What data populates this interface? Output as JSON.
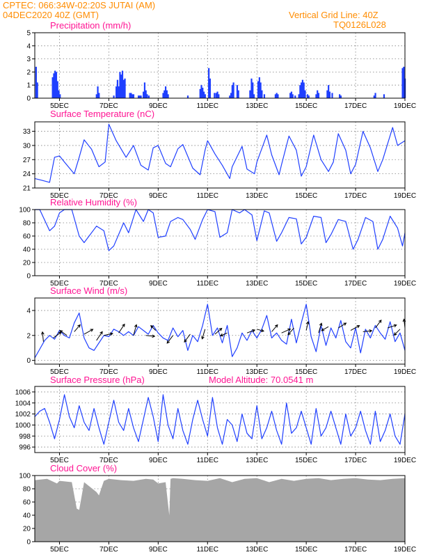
{
  "header": {
    "station": "CPTEC:   066:34W-02:20S   JUTAI (AM)",
    "date": "04DEC2020  40Z (GMT)",
    "grid_note": "Vertical Grid Line: 40Z",
    "run_id": "TQ0126L028"
  },
  "colors": {
    "header": "#ff8c00",
    "title": "#ff1493",
    "line": "#1f3fff",
    "bar": "#1f3fff",
    "cloud": "#a6a6a6",
    "grid": "#808080"
  },
  "x_ticks": [
    "5DEC",
    "7DEC",
    "9DEC",
    "11DEC",
    "13DEC",
    "15DEC",
    "17DEC",
    "19DEC"
  ],
  "chart_data": [
    {
      "id": "precip",
      "type": "bar",
      "title": "Precipitation (mm/h)",
      "ylim": [
        0,
        5
      ],
      "yticks": [
        "0",
        "1",
        "2",
        "3",
        "4",
        "5"
      ],
      "grid": true,
      "x_range_days": [
        4.0,
        19.0
      ],
      "bars": [
        [
          4.05,
          2.4
        ],
        [
          4.1,
          1.2
        ],
        [
          4.72,
          1.6
        ],
        [
          4.77,
          1.9
        ],
        [
          4.82,
          2.1
        ],
        [
          4.87,
          2.0
        ],
        [
          4.92,
          1.3
        ],
        [
          4.97,
          0.6
        ],
        [
          5.02,
          0.3
        ],
        [
          6.5,
          0.3
        ],
        [
          6.55,
          0.9
        ],
        [
          6.6,
          0.4
        ],
        [
          7.2,
          0.2
        ],
        [
          7.3,
          0.9
        ],
        [
          7.35,
          1.4
        ],
        [
          7.4,
          0.9
        ],
        [
          7.45,
          2.0
        ],
        [
          7.5,
          1.8
        ],
        [
          7.55,
          2.1
        ],
        [
          7.6,
          1.4
        ],
        [
          7.65,
          1.5
        ],
        [
          7.85,
          0.4
        ],
        [
          7.9,
          0.4
        ],
        [
          7.95,
          0.3
        ],
        [
          8.0,
          0.3
        ],
        [
          8.2,
          0.2
        ],
        [
          8.25,
          0.2
        ],
        [
          8.3,
          0.2
        ],
        [
          8.4,
          0.5
        ],
        [
          8.45,
          1.2
        ],
        [
          8.5,
          0.6
        ],
        [
          8.55,
          0.3
        ],
        [
          8.62,
          0.2
        ],
        [
          9.2,
          0.4
        ],
        [
          9.25,
          0.6
        ],
        [
          9.3,
          0.9
        ],
        [
          9.35,
          0.6
        ],
        [
          9.4,
          0.3
        ],
        [
          10.2,
          0.2
        ],
        [
          10.7,
          0.7
        ],
        [
          10.75,
          1.0
        ],
        [
          10.8,
          0.8
        ],
        [
          10.85,
          0.5
        ],
        [
          10.9,
          0.3
        ],
        [
          11.05,
          2.3
        ],
        [
          11.1,
          1.5
        ],
        [
          11.28,
          0.4
        ],
        [
          11.35,
          0.4
        ],
        [
          11.4,
          0.5
        ],
        [
          11.45,
          0.3
        ],
        [
          11.9,
          0.2
        ],
        [
          11.95,
          0.4
        ],
        [
          12.0,
          1.0
        ],
        [
          12.05,
          1.2
        ],
        [
          12.2,
          1.0
        ],
        [
          12.25,
          0.6
        ],
        [
          12.72,
          0.6
        ],
        [
          12.78,
          1.5
        ],
        [
          12.83,
          1.2
        ],
        [
          12.88,
          0.3
        ],
        [
          13.05,
          1.3
        ],
        [
          13.1,
          1.6
        ],
        [
          13.15,
          1.2
        ],
        [
          13.2,
          0.6
        ],
        [
          13.3,
          0.3
        ],
        [
          13.75,
          0.3
        ],
        [
          13.8,
          0.4
        ],
        [
          13.85,
          0.3
        ],
        [
          14.35,
          0.4
        ],
        [
          14.4,
          0.5
        ],
        [
          14.45,
          0.3
        ],
        [
          14.55,
          0.2
        ],
        [
          14.7,
          0.3
        ],
        [
          14.75,
          1.0
        ],
        [
          14.8,
          1.2
        ],
        [
          14.85,
          1.4
        ],
        [
          14.9,
          1.2
        ],
        [
          14.95,
          0.6
        ],
        [
          15.05,
          0.3
        ],
        [
          15.1,
          0.2
        ],
        [
          15.4,
          0.3
        ],
        [
          15.45,
          0.6
        ],
        [
          15.5,
          0.4
        ],
        [
          15.85,
          0.6
        ],
        [
          15.9,
          1.0
        ],
        [
          15.95,
          0.5
        ],
        [
          16.05,
          0.4
        ],
        [
          16.35,
          0.3
        ],
        [
          16.4,
          0.2
        ],
        [
          17.75,
          0.2
        ],
        [
          17.8,
          0.4
        ],
        [
          18.15,
          0.3
        ],
        [
          18.9,
          2.3
        ],
        [
          18.95,
          2.4
        ],
        [
          19.0,
          1.5
        ]
      ]
    },
    {
      "id": "temp",
      "type": "line",
      "title": "Surface Temperature (nC)",
      "ylim": [
        21,
        35
      ],
      "yticks": [
        "21",
        "24",
        "27",
        "30",
        "33"
      ],
      "ytick_values": [
        21,
        24,
        27,
        30,
        33
      ],
      "grid": true,
      "x": [
        4.0,
        4.3,
        4.6,
        4.8,
        5.0,
        5.2,
        5.6,
        5.8,
        6.0,
        6.3,
        6.6,
        6.85,
        7.0,
        7.3,
        7.7,
        8.0,
        8.3,
        8.6,
        8.8,
        9.0,
        9.3,
        9.5,
        9.8,
        10.0,
        10.4,
        10.7,
        10.9,
        11.0,
        11.3,
        11.6,
        11.9,
        12.0,
        12.4,
        12.6,
        12.9,
        13.0,
        13.4,
        13.6,
        13.9,
        14.0,
        14.3,
        14.6,
        14.8,
        15.0,
        15.3,
        15.6,
        15.9,
        16.1,
        16.3,
        16.6,
        16.8,
        17.0,
        17.3,
        17.6,
        17.9,
        18.1,
        18.5,
        18.7,
        19.0
      ],
      "y": [
        23.0,
        22.6,
        22.2,
        27.5,
        27.8,
        26.5,
        24.0,
        27.5,
        31.2,
        29.2,
        25.5,
        26.5,
        34.5,
        31.0,
        27.5,
        30.0,
        25.8,
        24.8,
        29.5,
        30.0,
        26.2,
        25.5,
        29.3,
        30.2,
        25.2,
        23.8,
        29.0,
        31.0,
        28.2,
        25.8,
        23.0,
        25.5,
        29.8,
        25.0,
        24.0,
        26.5,
        32.2,
        28.0,
        23.8,
        26.0,
        32.0,
        29.0,
        23.5,
        25.5,
        32.2,
        27.0,
        24.5,
        26.5,
        32.5,
        29.0,
        24.0,
        26.0,
        33.0,
        29.5,
        24.5,
        27.0,
        33.8,
        30.0,
        31.0
      ]
    },
    {
      "id": "rh",
      "type": "line",
      "title": "Relative Humidity (%)",
      "ylim": [
        0,
        100
      ],
      "yticks": [
        "0",
        "20",
        "40",
        "60",
        "80",
        "100"
      ],
      "ytick_values": [
        0,
        20,
        40,
        60,
        80,
        100
      ],
      "grid": true,
      "x": [
        4.0,
        4.2,
        4.6,
        4.8,
        5.0,
        5.2,
        5.5,
        5.8,
        6.0,
        6.5,
        6.8,
        7.0,
        7.2,
        7.6,
        7.8,
        8.1,
        8.4,
        8.6,
        8.8,
        9.0,
        9.3,
        9.5,
        9.8,
        10.0,
        10.3,
        10.5,
        10.8,
        11.0,
        11.3,
        11.5,
        11.8,
        12.0,
        12.3,
        12.5,
        12.8,
        13.0,
        13.3,
        13.5,
        13.8,
        14.0,
        14.3,
        14.6,
        14.8,
        15.0,
        15.3,
        15.6,
        15.8,
        16.0,
        16.3,
        16.6,
        16.9,
        17.1,
        17.4,
        17.7,
        17.9,
        18.1,
        18.4,
        18.7,
        18.9,
        19.0
      ],
      "y": [
        100,
        100,
        68,
        75,
        95,
        100,
        100,
        60,
        50,
        75,
        68,
        38,
        45,
        80,
        65,
        100,
        82,
        100,
        95,
        58,
        60,
        82,
        88,
        85,
        70,
        55,
        85,
        100,
        97,
        58,
        65,
        100,
        95,
        100,
        92,
        53,
        98,
        95,
        52,
        65,
        88,
        86,
        48,
        58,
        90,
        88,
        50,
        62,
        85,
        82,
        40,
        55,
        88,
        82,
        40,
        55,
        90,
        72,
        45,
        65
      ]
    },
    {
      "id": "wind",
      "type": "line",
      "title": "Surface Wind (m/s)",
      "ylim": [
        -0.3,
        5
      ],
      "yticks": [
        "0",
        "2",
        "4"
      ],
      "ytick_values": [
        0,
        2,
        4
      ],
      "grid": true,
      "x": [
        4.0,
        4.2,
        4.4,
        4.6,
        4.8,
        5.0,
        5.2,
        5.4,
        5.6,
        5.8,
        6.0,
        6.2,
        6.4,
        6.6,
        6.8,
        7.0,
        7.2,
        7.4,
        7.6,
        7.8,
        8.0,
        8.2,
        8.4,
        8.6,
        8.8,
        9.0,
        9.2,
        9.4,
        9.6,
        9.8,
        10.0,
        10.2,
        10.4,
        10.6,
        10.8,
        11.0,
        11.2,
        11.4,
        11.6,
        11.8,
        12.0,
        12.2,
        12.4,
        12.6,
        12.8,
        13.0,
        13.2,
        13.4,
        13.6,
        13.8,
        14.0,
        14.2,
        14.4,
        14.6,
        14.8,
        15.0,
        15.2,
        15.4,
        15.6,
        15.8,
        16.0,
        16.2,
        16.4,
        16.6,
        16.8,
        17.0,
        17.2,
        17.4,
        17.6,
        17.8,
        18.0,
        18.2,
        18.4,
        18.6,
        18.8,
        19.0
      ],
      "y": [
        0.2,
        0.9,
        1.6,
        2.0,
        1.7,
        2.4,
        2.0,
        1.8,
        3.0,
        3.8,
        1.8,
        1.0,
        0.8,
        1.4,
        2.0,
        1.9,
        2.5,
        2.3,
        2.0,
        2.3,
        2.0,
        2.7,
        2.4,
        2.1,
        2.8,
        2.2,
        1.8,
        1.6,
        2.6,
        1.9,
        2.4,
        0.8,
        2.0,
        1.5,
        2.8,
        4.5,
        2.0,
        2.6,
        1.4,
        2.8,
        0.3,
        1.0,
        2.2,
        1.6,
        2.4,
        1.8,
        2.5,
        3.6,
        1.8,
        2.2,
        1.6,
        1.3,
        3.3,
        1.4,
        3.0,
        4.5,
        1.9,
        0.7,
        2.8,
        1.2,
        2.6,
        1.8,
        3.2,
        1.5,
        1.0,
        2.6,
        0.6,
        2.5,
        1.8,
        2.8,
        2.2,
        1.7,
        3.1,
        1.5,
        2.2,
        0.8
      ],
      "arrows": [
        [
          4.35,
          1.5,
          -0.1,
          1.0
        ],
        [
          4.75,
          1.8,
          0.8,
          0.6
        ],
        [
          5.3,
          2.0,
          -0.7,
          0.5
        ],
        [
          5.6,
          2.3,
          0.6,
          0.7
        ],
        [
          6.0,
          2.1,
          0.9,
          0.5
        ],
        [
          6.5,
          1.6,
          0.6,
          0.9
        ],
        [
          6.8,
          2.0,
          0.9,
          0.2
        ],
        [
          7.4,
          2.2,
          0.6,
          0.9
        ],
        [
          8.0,
          2.0,
          0.3,
          1.1
        ],
        [
          8.5,
          2.0,
          0.9,
          -0.1
        ],
        [
          8.9,
          2.4,
          -0.5,
          0.5
        ],
        [
          9.6,
          2.0,
          -0.6,
          -0.8
        ],
        [
          10.3,
          2.1,
          -0.6,
          -0.8
        ],
        [
          10.9,
          2.5,
          -0.3,
          -1.0
        ],
        [
          11.3,
          2.1,
          0.7,
          0.6
        ],
        [
          11.8,
          2.2,
          -0.7,
          -0.3
        ],
        [
          12.6,
          2.2,
          0.8,
          0.3
        ],
        [
          13.0,
          2.5,
          0.7,
          -0.2
        ],
        [
          13.6,
          2.3,
          0.6,
          0.7
        ],
        [
          14.0,
          2.2,
          0.9,
          0.4
        ],
        [
          14.5,
          2.6,
          -0.6,
          -0.7
        ],
        [
          15.0,
          2.4,
          0.2,
          0.9
        ],
        [
          15.5,
          2.2,
          0.3,
          1.0
        ],
        [
          15.9,
          2.7,
          -0.7,
          -0.4
        ],
        [
          16.3,
          2.6,
          0.8,
          0.5
        ],
        [
          16.8,
          2.4,
          0.9,
          0.5
        ],
        [
          17.3,
          2.3,
          0.9,
          0.1
        ],
        [
          17.8,
          2.6,
          0.6,
          0.8
        ],
        [
          18.3,
          2.6,
          0.9,
          0.3
        ],
        [
          18.8,
          2.5,
          -0.6,
          -0.6
        ],
        [
          19.0,
          2.6,
          -0.1,
          0.9
        ]
      ]
    },
    {
      "id": "pres",
      "type": "line",
      "title": "Surface Pressure (hPa)",
      "annotation": "Model Altitude: 70.0541 m",
      "ylim": [
        995,
        1007
      ],
      "yticks": [
        "996",
        "998",
        "1000",
        "1002",
        "1004",
        "1006"
      ],
      "ytick_values": [
        996,
        998,
        1000,
        1002,
        1004,
        1006
      ],
      "grid": true,
      "x": [
        4.0,
        4.2,
        4.4,
        4.6,
        4.8,
        5.0,
        5.2,
        5.4,
        5.6,
        5.8,
        6.0,
        6.2,
        6.4,
        6.6,
        6.8,
        7.0,
        7.2,
        7.4,
        7.6,
        7.8,
        8.0,
        8.2,
        8.4,
        8.6,
        8.8,
        9.0,
        9.2,
        9.4,
        9.6,
        9.8,
        10.0,
        10.2,
        10.4,
        10.6,
        10.8,
        11.0,
        11.2,
        11.4,
        11.6,
        11.8,
        12.0,
        12.2,
        12.4,
        12.6,
        12.8,
        13.0,
        13.2,
        13.4,
        13.6,
        13.8,
        14.0,
        14.2,
        14.4,
        14.6,
        14.8,
        15.0,
        15.2,
        15.4,
        15.6,
        15.8,
        16.0,
        16.2,
        16.4,
        16.6,
        16.8,
        17.0,
        17.2,
        17.4,
        17.6,
        17.8,
        18.0,
        18.2,
        18.4,
        18.6,
        18.8,
        19.0
      ],
      "y": [
        1001.5,
        1002.5,
        1003.0,
        1000.5,
        997.5,
        1001.0,
        1005.5,
        1001.5,
        999.5,
        1003.5,
        1000.5,
        999.0,
        1003.0,
        999.5,
        996.5,
        1000.5,
        1004.5,
        1000.5,
        999.0,
        1003.0,
        999.5,
        997.0,
        1001.0,
        1005.0,
        1001.5,
        997.0,
        1005.5,
        1000.0,
        997.5,
        1003.0,
        999.0,
        996.5,
        1001.0,
        1004.5,
        1001.0,
        998.0,
        1005.0,
        999.5,
        996.5,
        1001.0,
        1000.0,
        997.0,
        1002.0,
        998.5,
        997.5,
        1003.5,
        997.5,
        999.5,
        1002.5,
        999.0,
        996.5,
        1004.0,
        998.5,
        999.5,
        1002.5,
        999.5,
        996.5,
        1003.0,
        998.0,
        999.5,
        1002.5,
        999.5,
        996.5,
        1002.0,
        998.0,
        999.5,
        1002.5,
        999.0,
        996.5,
        1002.5,
        997.0,
        999.0,
        1002.0,
        998.0,
        996.5,
        1002.0
      ]
    },
    {
      "id": "cloud",
      "type": "area",
      "title": "Cloud Cover (%)",
      "ylim": [
        0,
        100
      ],
      "yticks": [
        "0",
        "20",
        "40",
        "60",
        "80",
        "100"
      ],
      "ytick_values": [
        0,
        20,
        40,
        60,
        80,
        100
      ],
      "grid": true,
      "x": [
        4.0,
        4.5,
        4.9,
        5.0,
        5.5,
        5.7,
        5.8,
        6.0,
        6.5,
        6.6,
        6.8,
        7.0,
        7.5,
        8.0,
        8.5,
        8.8,
        9.0,
        9.3,
        9.45,
        9.5,
        9.6,
        10.0,
        10.5,
        11.0,
        11.5,
        12.0,
        12.5,
        13.0,
        13.5,
        14.0,
        14.5,
        15.0,
        15.5,
        16.0,
        16.5,
        17.0,
        17.5,
        18.0,
        18.5,
        19.0
      ],
      "y": [
        93,
        95,
        88,
        92,
        90,
        50,
        48,
        90,
        75,
        70,
        92,
        95,
        93,
        92,
        95,
        94,
        88,
        90,
        40,
        95,
        96,
        95,
        93,
        92,
        96,
        90,
        95,
        96,
        90,
        95,
        92,
        95,
        96,
        93,
        95,
        96,
        94,
        93,
        95,
        96
      ]
    }
  ]
}
